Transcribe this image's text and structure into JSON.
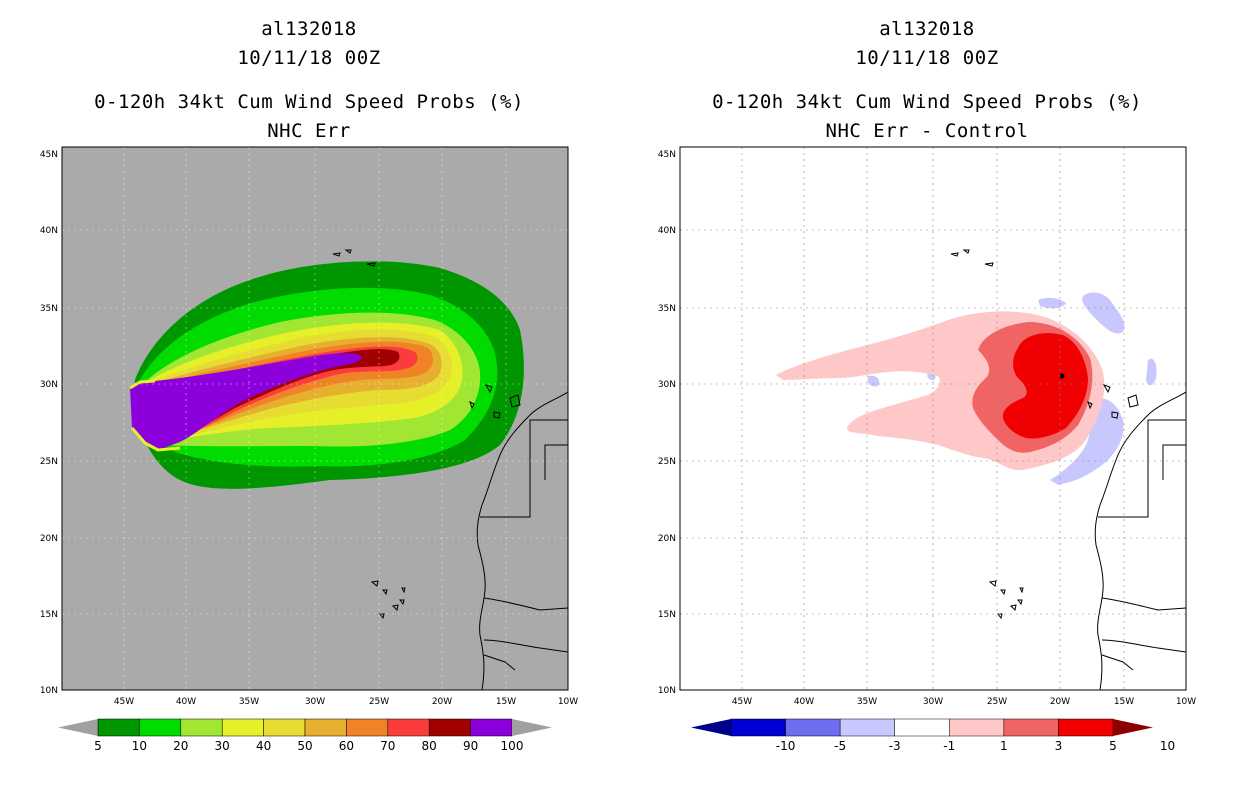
{
  "left": {
    "storm_id": "al132018",
    "datetime": "10/11/18 00Z",
    "product": "0-120h 34kt Cum Wind Speed Probs (%)",
    "subtitle": "NHC Err",
    "lat_ticks": [
      "45N",
      "40N",
      "35N",
      "30N",
      "25N",
      "20N",
      "15N",
      "10N"
    ],
    "lon_ticks": [
      "45W",
      "40W",
      "35W",
      "30W",
      "25W",
      "20W",
      "15W",
      "10W"
    ],
    "colorbar": {
      "colors": [
        "#009600",
        "#00dc00",
        "#a0e632",
        "#e6f028",
        "#e6dc32",
        "#e6af2d",
        "#f08228",
        "#fa3c3c",
        "#a00000",
        "#8c00dc"
      ],
      "labels": [
        "5",
        "10",
        "20",
        "30",
        "40",
        "50",
        "60",
        "70",
        "80",
        "90",
        "100"
      ],
      "arrow_color": "#a0a0a0"
    }
  },
  "right": {
    "storm_id": "al132018",
    "datetime": "10/11/18 00Z",
    "product": "0-120h 34kt Cum Wind Speed Probs (%)",
    "subtitle": "NHC Err - Control",
    "lat_ticks": [
      "45N",
      "40N",
      "35N",
      "30N",
      "25N",
      "20N",
      "15N",
      "10N"
    ],
    "lon_ticks": [
      "45W",
      "40W",
      "35W",
      "30W",
      "25W",
      "20W",
      "15W",
      "10W"
    ],
    "colorbar": {
      "colors": [
        "#0000d2",
        "#6e6ef0",
        "#c8c8ff",
        "#ffffff",
        "#ffc8c8",
        "#f06464",
        "#f00000"
      ],
      "labels": [
        "-10",
        "-5",
        "-3",
        "-1",
        "1",
        "3",
        "5",
        "10"
      ],
      "arrow_low_color": "#00008c",
      "arrow_high_color": "#8c0000"
    }
  }
}
